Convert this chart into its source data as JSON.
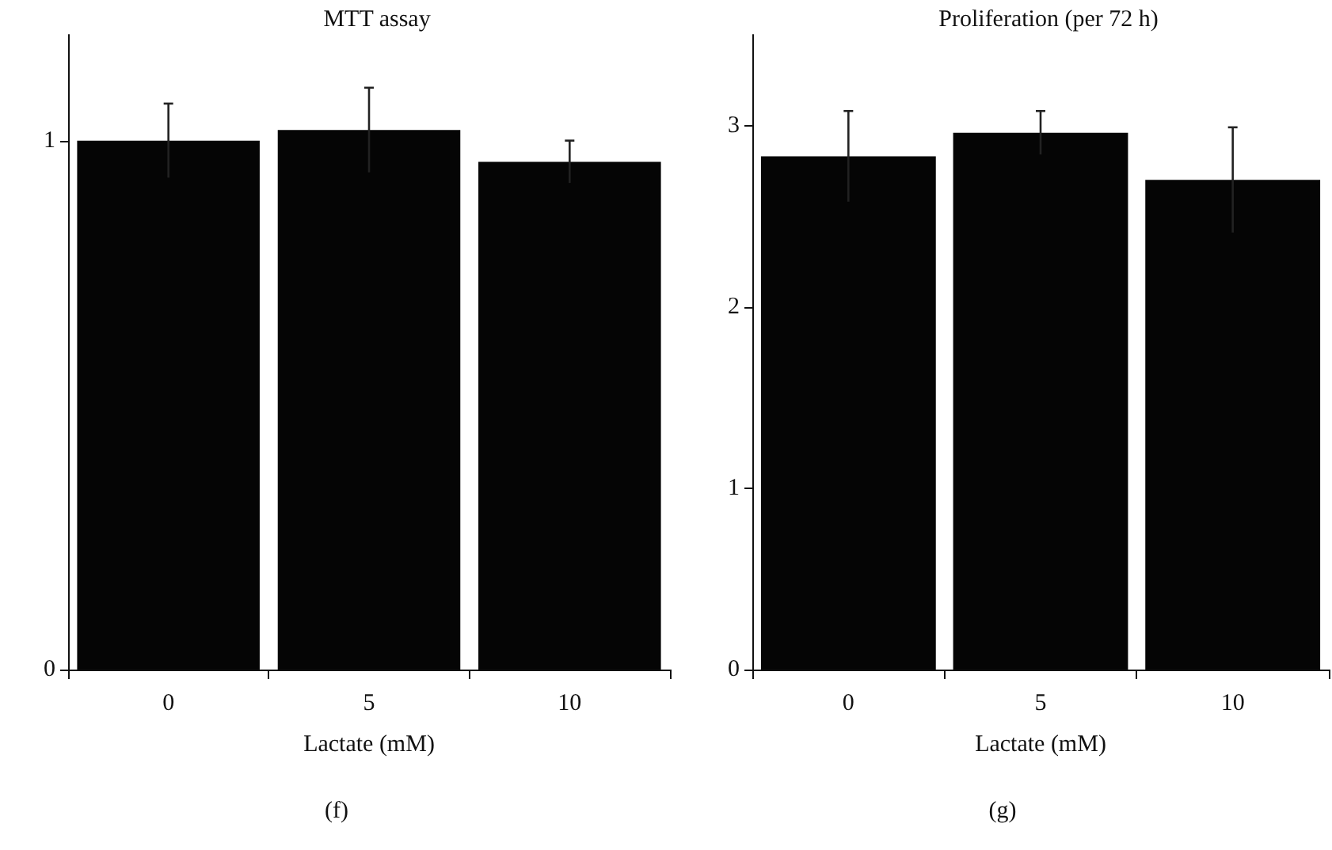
{
  "chart_data": [
    {
      "type": "bar",
      "title": "MTT assay",
      "xlabel": "Lactate (mM)",
      "annotations": [
        "(f)"
      ],
      "categories": [
        "0",
        "5",
        "10"
      ],
      "values": [
        1.0,
        1.02,
        0.96
      ],
      "errors": [
        0.07,
        0.08,
        0.04
      ],
      "color": "#050505",
      "ylim": [
        0,
        1.2
      ],
      "yticks": [
        0,
        1
      ],
      "grid": false
    },
    {
      "type": "bar",
      "title": "Proliferation (per 72 h)",
      "xlabel": "Lactate (mM)",
      "annotations": [
        "(g)"
      ],
      "categories": [
        "0",
        "5",
        "10"
      ],
      "values": [
        2.83,
        2.96,
        2.7
      ],
      "errors": [
        0.25,
        0.12,
        0.29
      ],
      "color": "#050505",
      "ylim": [
        0,
        3.5
      ],
      "yticks": [
        0,
        1,
        2,
        3
      ],
      "grid": false
    }
  ]
}
